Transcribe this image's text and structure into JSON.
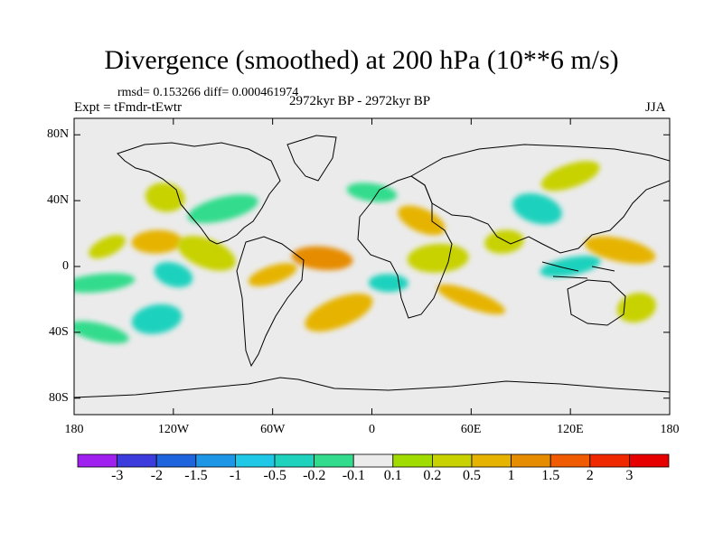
{
  "chart_data": {
    "type": "heatmap",
    "title": "Divergence (smoothed) at 200 hPa (10**6 m/s)",
    "stats_text": "rmsd= 0.153266  diff= 0.000461974",
    "experiment": "Expt = tFmdr-tEwtr",
    "period": "2972kyr BP - 2972kyr BP",
    "season": "JJA",
    "x_ticks": [
      "180",
      "120W",
      "60W",
      "0",
      "60E",
      "120E",
      "180"
    ],
    "x_values": [
      -180,
      -120,
      -60,
      0,
      60,
      120,
      180
    ],
    "y_ticks": [
      "80N",
      "40N",
      "0",
      "40S",
      "80S"
    ],
    "y_values": [
      80,
      40,
      0,
      -40,
      -80
    ],
    "xlim": [
      -180,
      180
    ],
    "ylim": [
      -90,
      90
    ],
    "colorbar_labels": [
      "-3",
      "-2",
      "-1.5",
      "-1",
      "-0.5",
      "-0.2",
      "-0.1",
      "0.1",
      "0.2",
      "0.5",
      "1",
      "1.5",
      "2",
      "3"
    ],
    "colorbar_colors": [
      "#a020f0",
      "#3c3cdc",
      "#1e64dc",
      "#1e96e6",
      "#1ec8e6",
      "#1ed2be",
      "#32dc8c",
      "#ebebeb",
      "#a0dc00",
      "#c8d200",
      "#e6b400",
      "#e68c00",
      "#f05a00",
      "#f02800",
      "#e60000"
    ],
    "anomalies": [
      {
        "lon": -160,
        "lat": 12,
        "value": 0.2
      },
      {
        "lon": -130,
        "lat": 15,
        "value": 0.5
      },
      {
        "lon": -100,
        "lat": 8,
        "value": 0.2
      },
      {
        "lon": -165,
        "lat": -10,
        "value": -0.2
      },
      {
        "lon": -120,
        "lat": -5,
        "value": -0.5
      },
      {
        "lon": -130,
        "lat": -32,
        "value": -0.5
      },
      {
        "lon": -165,
        "lat": -40,
        "value": -0.2
      },
      {
        "lon": -90,
        "lat": 35,
        "value": -0.2
      },
      {
        "lon": -125,
        "lat": 42,
        "value": 0.2
      },
      {
        "lon": -60,
        "lat": -5,
        "value": 0.5
      },
      {
        "lon": -30,
        "lat": 5,
        "value": 1
      },
      {
        "lon": -20,
        "lat": -28,
        "value": 0.5
      },
      {
        "lon": 10,
        "lat": -10,
        "value": -0.5
      },
      {
        "lon": 30,
        "lat": 28,
        "value": 0.5
      },
      {
        "lon": 40,
        "lat": 5,
        "value": 0.2
      },
      {
        "lon": 60,
        "lat": -20,
        "value": 0.5
      },
      {
        "lon": 80,
        "lat": 15,
        "value": 0.2
      },
      {
        "lon": 100,
        "lat": 35,
        "value": -0.5
      },
      {
        "lon": 120,
        "lat": 0,
        "value": -0.5
      },
      {
        "lon": 150,
        "lat": 10,
        "value": 0.5
      },
      {
        "lon": 160,
        "lat": -25,
        "value": 0.2
      },
      {
        "lon": 0,
        "lat": 45,
        "value": -0.2
      },
      {
        "lon": 120,
        "lat": 55,
        "value": 0.2
      }
    ]
  }
}
